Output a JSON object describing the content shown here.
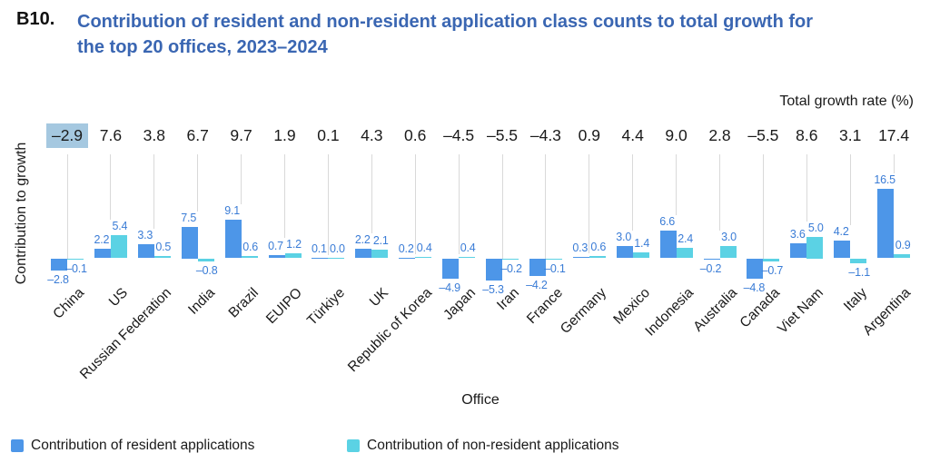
{
  "figure": {
    "code": "B10.",
    "title_line1": "Contribution of resident and non-resident application class counts to total growth for",
    "title_line2": "the top 20 offices, 2023–2024"
  },
  "chart_data": {
    "type": "bar",
    "title": "Contribution of resident and non-resident application class counts to total growth for the top 20 offices, 2023–2024",
    "xlabel": "Office",
    "ylabel": "Contribution to growth",
    "secondary_axis_label": "Total growth rate (%)",
    "legend_position": "bottom",
    "grid": false,
    "ylim": [
      -6,
      18
    ],
    "categories": [
      "China",
      "US",
      "Russian Federation",
      "India",
      "Brazil",
      "EUIPO",
      "Türkiye",
      "UK",
      "Republic of Korea",
      "Japan",
      "Iran",
      "France",
      "Germany",
      "Mexico",
      "Indonesia",
      "Australia",
      "Canada",
      "Viet Nam",
      "Italy",
      "Argentina"
    ],
    "total_growth_rate": [
      -2.9,
      7.6,
      3.8,
      6.7,
      9.7,
      1.9,
      0.1,
      4.3,
      0.6,
      -4.5,
      -5.5,
      -4.3,
      0.9,
      4.4,
      9.0,
      2.8,
      -5.5,
      8.6,
      3.1,
      17.4
    ],
    "highlighted_office": "China",
    "highlighted_total_value": -2.9,
    "series": [
      {
        "name": "Contribution of resident applications",
        "values": [
          -2.8,
          2.2,
          3.3,
          7.5,
          9.1,
          0.7,
          0.1,
          2.2,
          0.2,
          -4.9,
          -5.3,
          -4.2,
          0.3,
          3.0,
          6.6,
          -0.2,
          -4.8,
          3.6,
          4.2,
          16.5
        ]
      },
      {
        "name": "Contribution of non-resident applications",
        "values": [
          -0.1,
          5.4,
          0.5,
          -0.8,
          0.6,
          1.2,
          0.0,
          2.1,
          0.4,
          0.4,
          -0.2,
          -0.1,
          0.6,
          1.4,
          2.4,
          3.0,
          -0.7,
          5.0,
          -1.1,
          0.9
        ]
      }
    ],
    "colors": {
      "resident": "#4D96E8",
      "non_resident": "#5BD2E4",
      "value_label": "#3A7CD6",
      "dropline": "#D9D9D9",
      "highlight": "#A5C8E0",
      "title": "#3A66B2"
    }
  }
}
